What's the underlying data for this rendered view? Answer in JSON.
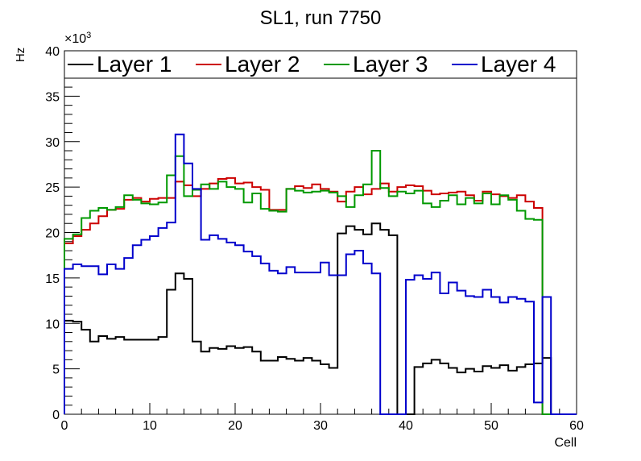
{
  "chart_data": {
    "type": "line",
    "title": "SL1, run 7750",
    "xlabel": "Cell",
    "ylabel": "Hz",
    "y_multiplier_label": "×10",
    "y_multiplier_exponent": "3",
    "xlim": [
      0,
      60
    ],
    "ylim": [
      0,
      40
    ],
    "x_ticks": [
      0,
      10,
      20,
      30,
      40,
      50,
      60
    ],
    "y_ticks": [
      0,
      5,
      10,
      15,
      20,
      25,
      30,
      35,
      40
    ],
    "grid": false,
    "legend_position": "top",
    "bin_edges": [
      0,
      1,
      2,
      3,
      4,
      5,
      6,
      7,
      8,
      9,
      10,
      11,
      12,
      13,
      14,
      15,
      16,
      17,
      18,
      19,
      20,
      21,
      22,
      23,
      24,
      25,
      26,
      27,
      28,
      29,
      30,
      31,
      32,
      33,
      34,
      35,
      36,
      37,
      38,
      39,
      40,
      41,
      42,
      43,
      44,
      45,
      46,
      47,
      48,
      49,
      50,
      51,
      52,
      53,
      54,
      55,
      56,
      57,
      58,
      59,
      60
    ],
    "series": [
      {
        "name": "Layer 1",
        "color": "#000000",
        "values": [
          10.3,
          10.2,
          9.3,
          8.0,
          8.6,
          8.3,
          8.5,
          8.2,
          8.2,
          8.2,
          8.2,
          8.5,
          13.7,
          15.5,
          14.9,
          8.0,
          6.9,
          7.3,
          7.2,
          7.5,
          7.3,
          7.4,
          6.9,
          5.9,
          5.9,
          6.3,
          6.1,
          5.9,
          6.2,
          5.9,
          5.5,
          5.1,
          19.9,
          20.7,
          20.3,
          19.8,
          21.0,
          20.3,
          19.7,
          0,
          0,
          5.2,
          5.6,
          6.0,
          5.6,
          5.1,
          4.6,
          5.0,
          4.7,
          5.3,
          5.1,
          5.4,
          4.8,
          5.2,
          5.5,
          5.6,
          6.2,
          0,
          0,
          0
        ]
      },
      {
        "name": "Layer 2",
        "color": "#cc0000",
        "values": [
          18.8,
          19.6,
          20.3,
          21.0,
          21.8,
          22.5,
          22.6,
          23.6,
          23.8,
          23.4,
          23.7,
          23.8,
          23.8,
          25.6,
          25.2,
          24.0,
          24.8,
          25.4,
          25.9,
          26.0,
          25.4,
          25.5,
          25.0,
          24.7,
          22.5,
          22.5,
          24.8,
          25.1,
          24.9,
          25.3,
          24.8,
          24.5,
          23.4,
          24.5,
          25.0,
          24.2,
          24.8,
          25.4,
          24.5,
          25.0,
          25.2,
          25.1,
          24.6,
          24.2,
          24.3,
          24.4,
          24.5,
          24.1,
          23.5,
          24.5,
          24.2,
          24.0,
          23.8,
          24.1,
          23.4,
          22.7,
          0,
          0,
          0,
          0
        ]
      },
      {
        "name": "Layer 3",
        "color": "#009900",
        "values": [
          19.3,
          19.8,
          21.6,
          22.4,
          22.7,
          22.5,
          22.8,
          24.1,
          23.6,
          23.2,
          23.1,
          23.3,
          26.3,
          28.4,
          24.0,
          24.7,
          25.3,
          24.8,
          25.6,
          25.0,
          24.8,
          23.3,
          24.3,
          22.6,
          22.4,
          22.3,
          24.8,
          24.6,
          24.4,
          24.5,
          24.6,
          24.4,
          24.0,
          22.8,
          24.1,
          25.3,
          29.0,
          24.9,
          24.0,
          24.5,
          24.3,
          24.6,
          23.2,
          22.8,
          23.5,
          24.1,
          23.1,
          23.8,
          23.2,
          24.3,
          23.1,
          24.1,
          23.6,
          22.4,
          21.5,
          21.4,
          0,
          0,
          0,
          0
        ]
      },
      {
        "name": "Layer 4",
        "color": "#0000cc",
        "values": [
          16.0,
          16.5,
          16.3,
          16.3,
          15.4,
          16.5,
          16.0,
          17.2,
          18.6,
          19.2,
          19.6,
          20.5,
          21.1,
          30.8,
          27.6,
          24.8,
          19.2,
          19.7,
          19.3,
          18.9,
          18.6,
          17.9,
          17.4,
          16.6,
          15.8,
          15.5,
          16.2,
          15.6,
          15.6,
          15.6,
          16.7,
          15.3,
          15.3,
          17.6,
          18.0,
          16.6,
          15.5,
          0,
          0,
          0,
          14.8,
          15.3,
          14.9,
          15.6,
          13.3,
          14.5,
          13.6,
          13.0,
          12.9,
          13.7,
          12.9,
          12.3,
          12.9,
          12.7,
          12.4,
          1.3,
          12.9,
          0,
          0,
          0
        ]
      }
    ]
  }
}
